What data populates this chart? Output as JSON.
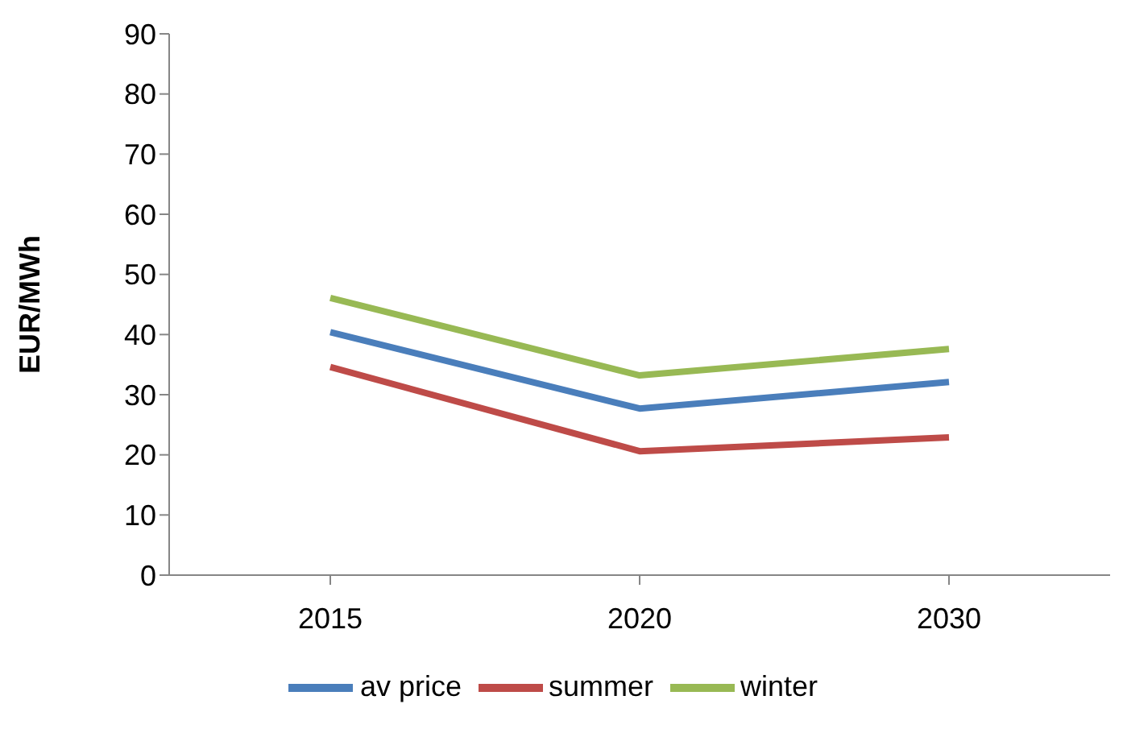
{
  "chart_data": {
    "type": "line",
    "ylabel": "EUR/MWh",
    "categories": [
      "2015",
      "2020",
      "2030"
    ],
    "series": [
      {
        "name": "av price",
        "color": "#4a7ebb",
        "values": [
          40.4,
          27.7,
          32.1
        ]
      },
      {
        "name": "summer",
        "color": "#be4b48",
        "values": [
          34.6,
          20.6,
          22.9
        ]
      },
      {
        "name": "winter",
        "color": "#98b954",
        "values": [
          46.1,
          33.2,
          37.6
        ]
      }
    ],
    "ylim": [
      0,
      90
    ],
    "yticks": [
      0,
      10,
      20,
      30,
      40,
      50,
      60,
      70,
      80,
      90
    ],
    "grid": false,
    "legend": "bottom",
    "marker": "none",
    "line_style": "solid"
  }
}
